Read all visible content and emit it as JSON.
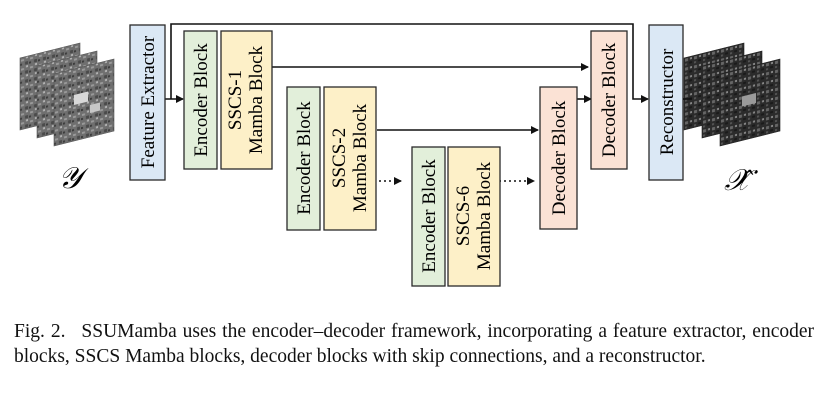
{
  "diagram": {
    "input_symbol": "𝒴",
    "output_symbol": "𝒳̂",
    "feature_extractor": "Feature Extractor",
    "reconstructor": "Reconstructor",
    "encoder_label": "Encoder Block",
    "decoder_label": "Decoder Block",
    "mamba": [
      {
        "line1": "SSCS-1",
        "line2": "Mamba Block"
      },
      {
        "line1": "SSCS-2",
        "line2": "Mamba Block"
      },
      {
        "line1": "SSCS-6",
        "line2": "Mamba Block"
      }
    ],
    "colors": {
      "feature_fill": "#dbe8f5",
      "encoder_fill": "#e2efda",
      "mamba_fill": "#fdf0c8",
      "decoder_fill": "#fbe2d5",
      "stroke": "#2a2a2a"
    }
  },
  "caption": {
    "label": "Fig. 2.",
    "text": "SSUMamba uses the encoder–decoder framework, incorporating a feature extractor, encoder blocks, SSCS Mamba blocks, decoder blocks with skip connections, and a reconstructor."
  }
}
